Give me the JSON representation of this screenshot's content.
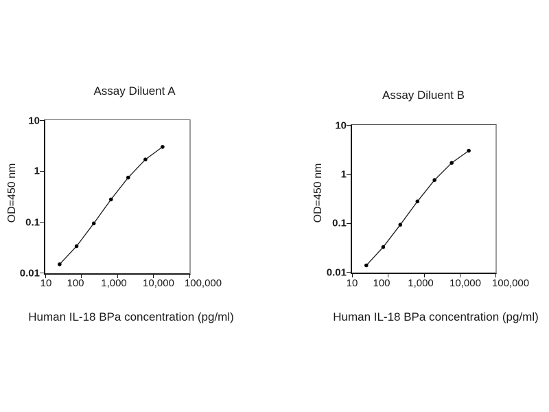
{
  "page": {
    "background": "#ffffff",
    "colors": {
      "line": "#1a1a1a",
      "marker": "#000000",
      "axis": "#000000",
      "frame_gray": "#9c9c9c"
    }
  },
  "chart_data": [
    {
      "type": "line",
      "title": "Assay Diluent A",
      "xlabel": "Human IL-18 BPa  concentration (pg/ml)",
      "ylabel": "OD=450 nm",
      "x_scale": "log",
      "y_scale": "log",
      "xlim": [
        10,
        100000
      ],
      "ylim": [
        0.01,
        10
      ],
      "grid": false,
      "legend": "none",
      "x": [
        25,
        74,
        222,
        667,
        2000,
        6000,
        18000
      ],
      "y": [
        0.015,
        0.034,
        0.095,
        0.28,
        0.75,
        1.7,
        3.0
      ],
      "x_tick_labels": [
        "10",
        "100",
        "1,000",
        "10,000",
        "100,000"
      ],
      "y_tick_labels": [
        "10",
        "1",
        "0.1",
        "0.01"
      ],
      "line_color": "#1a1a1a",
      "marker_color": "#000000"
    },
    {
      "type": "line",
      "title": "Assay Diluent B",
      "xlabel": "Human IL-18 BPa  concentration (pg/ml)",
      "ylabel": "OD=450 nm",
      "x_scale": "log",
      "y_scale": "log",
      "xlim": [
        10,
        100000
      ],
      "ylim": [
        0.01,
        10
      ],
      "grid": false,
      "legend": "none",
      "x": [
        25,
        74,
        222,
        667,
        2000,
        6000,
        18000
      ],
      "y": [
        0.014,
        0.033,
        0.094,
        0.28,
        0.76,
        1.7,
        3.0
      ],
      "x_tick_labels": [
        "10",
        "100",
        "1,000",
        "10,000",
        "100,000"
      ],
      "y_tick_labels": [
        "10",
        "1",
        "0.1",
        "0.01"
      ],
      "line_color": "#1a1a1a",
      "marker_color": "#000000"
    }
  ]
}
